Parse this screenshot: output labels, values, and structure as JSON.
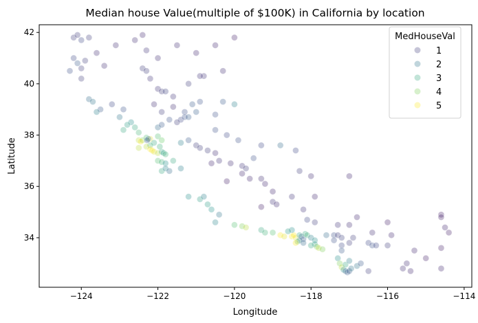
{
  "chart_data": {
    "type": "scatter",
    "title": "Median house Value(multiple of $100K) in California by location",
    "xlabel": "Longitude",
    "ylabel": "Latitude",
    "xlim": [
      -125.1,
      -113.8
    ],
    "ylim": [
      32.07,
      42.3
    ],
    "xticks": [
      -124,
      -122,
      -120,
      -118,
      -116,
      -114
    ],
    "xtick_labels": [
      "−124",
      "−122",
      "−120",
      "−118",
      "−116",
      "−114"
    ],
    "yticks": [
      34,
      36,
      38,
      40,
      42
    ],
    "ytick_labels": [
      "34",
      "36",
      "38",
      "40",
      "42"
    ],
    "grid": false,
    "colormap": "viridis",
    "hue_range": [
      0.15,
      5.0
    ],
    "alpha": 0.3,
    "legend": {
      "title": "MedHouseVal",
      "placement": "top-right",
      "entries": [
        {
          "label": "1",
          "value": 1
        },
        {
          "label": "2",
          "value": 2
        },
        {
          "label": "3",
          "value": 3
        },
        {
          "label": "4",
          "value": 4
        },
        {
          "label": "5",
          "value": 5
        }
      ]
    },
    "points": [
      [
        -124.2,
        41.8,
        1
      ],
      [
        -124.1,
        41.9,
        1
      ],
      [
        -124.0,
        41.7,
        1.2
      ],
      [
        -123.8,
        41.8,
        1
      ],
      [
        -124.2,
        41.0,
        1.2
      ],
      [
        -124.1,
        40.8,
        1.5
      ],
      [
        -124.0,
        40.6,
        1
      ],
      [
        -124.3,
        40.5,
        1.3
      ],
      [
        -123.9,
        40.9,
        1
      ],
      [
        -124.0,
        40.2,
        1
      ],
      [
        -123.6,
        41.2,
        0.8
      ],
      [
        -123.4,
        40.7,
        0.8
      ],
      [
        -123.1,
        41.5,
        0.8
      ],
      [
        -122.6,
        41.7,
        0.8
      ],
      [
        -122.4,
        41.9,
        0.7
      ],
      [
        -122.3,
        41.3,
        0.9
      ],
      [
        -122.0,
        41.0,
        0.8
      ],
      [
        -121.5,
        41.5,
        0.8
      ],
      [
        -121.0,
        41.2,
        0.7
      ],
      [
        -120.5,
        41.5,
        0.7
      ],
      [
        -120.3,
        40.5,
        0.8
      ],
      [
        -120.8,
        40.3,
        0.9
      ],
      [
        -120.0,
        41.8,
        0.6
      ],
      [
        -123.8,
        39.4,
        1.8
      ],
      [
        -123.7,
        39.3,
        2
      ],
      [
        -123.5,
        39.0,
        1.5
      ],
      [
        -123.2,
        39.2,
        1.2
      ],
      [
        -123.6,
        38.9,
        2.2
      ],
      [
        -122.9,
        39.0,
        1.4
      ],
      [
        -122.7,
        38.5,
        2.5
      ],
      [
        -122.8,
        38.4,
        2.8
      ],
      [
        -122.6,
        38.3,
        3
      ],
      [
        -122.5,
        38.1,
        3.3
      ],
      [
        -122.9,
        38.2,
        3
      ],
      [
        -123.0,
        38.7,
        2
      ],
      [
        -122.4,
        40.6,
        1
      ],
      [
        -122.3,
        40.5,
        1
      ],
      [
        -122.2,
        40.2,
        0.9
      ],
      [
        -122.0,
        39.8,
        0.9
      ],
      [
        -121.9,
        39.7,
        1
      ],
      [
        -121.8,
        39.7,
        1.1
      ],
      [
        -121.6,
        39.5,
        0.9
      ],
      [
        -121.6,
        39.1,
        0.8
      ],
      [
        -121.3,
        38.9,
        1.3
      ],
      [
        -121.4,
        38.6,
        1.2
      ],
      [
        -121.5,
        38.5,
        1
      ],
      [
        -121.3,
        38.7,
        1.4
      ],
      [
        -121.2,
        38.7,
        1.6
      ],
      [
        -121.0,
        38.9,
        1.6
      ],
      [
        -121.1,
        39.2,
        1.5
      ],
      [
        -120.9,
        39.3,
        1.4
      ],
      [
        -120.5,
        38.8,
        1.3
      ],
      [
        -120.3,
        39.3,
        1.5
      ],
      [
        -120.0,
        39.2,
        2.2
      ],
      [
        -121.7,
        38.6,
        1.4
      ],
      [
        -122.0,
        38.3,
        1.8
      ],
      [
        -121.9,
        38.4,
        1.5
      ],
      [
        -121.2,
        40.0,
        1
      ],
      [
        -120.9,
        40.3,
        0.9
      ],
      [
        -122.1,
        39.2,
        0.8
      ],
      [
        -121.9,
        38.9,
        1
      ],
      [
        -122.5,
        37.8,
        4.5
      ],
      [
        -122.4,
        37.8,
        4
      ],
      [
        -122.45,
        37.75,
        5
      ],
      [
        -122.3,
        37.9,
        3.5
      ],
      [
        -122.2,
        37.85,
        4.8
      ],
      [
        -122.1,
        37.7,
        3
      ],
      [
        -122.2,
        37.6,
        3.2
      ],
      [
        -122.3,
        37.55,
        4.5
      ],
      [
        -122.2,
        37.45,
        5
      ],
      [
        -122.15,
        37.4,
        5
      ],
      [
        -122.1,
        37.35,
        4.8
      ],
      [
        -122.0,
        37.3,
        4.5
      ],
      [
        -121.9,
        37.35,
        3
      ],
      [
        -121.85,
        37.3,
        2.8
      ],
      [
        -121.8,
        37.25,
        3.2
      ],
      [
        -121.95,
        37.55,
        3.2
      ],
      [
        -122.0,
        37.95,
        3.5
      ],
      [
        -121.9,
        37.8,
        3.8
      ],
      [
        -122.5,
        37.5,
        4.5
      ],
      [
        -122.0,
        37.0,
        3.5
      ],
      [
        -121.9,
        36.95,
        3.2
      ],
      [
        -121.8,
        36.9,
        2.5
      ],
      [
        -121.6,
        37.0,
        3
      ],
      [
        -121.4,
        37.7,
        2.2
      ],
      [
        -121.2,
        37.8,
        1.5
      ],
      [
        -122.25,
        37.85,
        2
      ],
      [
        -122.28,
        37.8,
        1.5
      ],
      [
        -121.9,
        36.6,
        3
      ],
      [
        -121.8,
        36.7,
        2.3
      ],
      [
        -121.7,
        36.6,
        1.8
      ],
      [
        -121.4,
        36.7,
        2.2
      ],
      [
        -121.0,
        37.6,
        1
      ],
      [
        -120.9,
        37.5,
        1
      ],
      [
        -120.5,
        37.3,
        0.8
      ],
      [
        -120.4,
        37.0,
        0.9
      ],
      [
        -120.1,
        36.9,
        0.8
      ],
      [
        -119.8,
        36.8,
        0.9
      ],
      [
        -119.7,
        36.7,
        1
      ],
      [
        -119.8,
        36.5,
        0.7
      ],
      [
        -119.6,
        36.3,
        0.7
      ],
      [
        -119.3,
        36.3,
        0.8
      ],
      [
        -119.2,
        36.1,
        0.7
      ],
      [
        -119.0,
        35.8,
        0.7
      ],
      [
        -119.0,
        35.4,
        0.9
      ],
      [
        -118.9,
        35.3,
        0.8
      ],
      [
        -119.3,
        35.2,
        0.6
      ],
      [
        -120.7,
        37.4,
        1
      ],
      [
        -120.6,
        36.9,
        0.7
      ],
      [
        -120.2,
        36.2,
        0.6
      ],
      [
        -119.5,
        37.1,
        1.3
      ],
      [
        -119.3,
        37.6,
        1.2
      ],
      [
        -119.9,
        37.8,
        1.3
      ],
      [
        -120.2,
        38.0,
        1.2
      ],
      [
        -120.5,
        38.2,
        1.3
      ],
      [
        -118.4,
        37.4,
        1.2
      ],
      [
        -118.8,
        37.6,
        1.8
      ],
      [
        -118.3,
        36.6,
        1
      ],
      [
        -118.0,
        36.4,
        0.8
      ],
      [
        -117.9,
        35.6,
        0.7
      ],
      [
        -118.2,
        35.1,
        0.9
      ],
      [
        -118.5,
        35.6,
        0.9
      ],
      [
        -117.0,
        36.4,
        0.7
      ],
      [
        -121.2,
        35.6,
        2.5
      ],
      [
        -120.7,
        35.3,
        2.8
      ],
      [
        -120.6,
        35.1,
        2.6
      ],
      [
        -120.4,
        34.9,
        2
      ],
      [
        -120.5,
        34.6,
        2.3
      ],
      [
        -120.0,
        34.5,
        3.5
      ],
      [
        -119.8,
        34.45,
        4
      ],
      [
        -119.7,
        34.4,
        4.5
      ],
      [
        -119.3,
        34.3,
        3
      ],
      [
        -119.2,
        34.2,
        3.2
      ],
      [
        -119.0,
        34.2,
        3.5
      ],
      [
        -118.8,
        34.1,
        5
      ],
      [
        -118.7,
        34.05,
        4.8
      ],
      [
        -120.9,
        35.5,
        2.8
      ],
      [
        -120.8,
        35.6,
        2.2
      ],
      [
        -118.5,
        34.05,
        5
      ],
      [
        -118.4,
        34.0,
        4.8
      ],
      [
        -118.45,
        34.1,
        5
      ],
      [
        -118.3,
        34.1,
        3
      ],
      [
        -118.25,
        34.05,
        1.8
      ],
      [
        -118.2,
        33.95,
        1.5
      ],
      [
        -118.3,
        33.9,
        2
      ],
      [
        -118.35,
        33.85,
        3.5
      ],
      [
        -118.4,
        33.8,
        5
      ],
      [
        -118.15,
        34.15,
        3
      ],
      [
        -118.1,
        34.1,
        3.2
      ],
      [
        -118.0,
        34.0,
        2.2
      ],
      [
        -117.9,
        33.9,
        2.5
      ],
      [
        -117.9,
        33.75,
        2.8
      ],
      [
        -117.85,
        33.65,
        4
      ],
      [
        -117.8,
        33.6,
        4.5
      ],
      [
        -117.7,
        33.55,
        4
      ],
      [
        -118.0,
        33.7,
        3
      ],
      [
        -118.5,
        34.3,
        2.5
      ],
      [
        -118.6,
        34.25,
        2.8
      ],
      [
        -118.1,
        34.7,
        1.2
      ],
      [
        -117.9,
        34.6,
        1
      ],
      [
        -118.2,
        33.8,
        1.8
      ],
      [
        -117.6,
        34.1,
        1.8
      ],
      [
        -117.4,
        34.1,
        1.3
      ],
      [
        -117.3,
        34.1,
        1
      ],
      [
        -117.2,
        34.0,
        1.1
      ],
      [
        -117.4,
        33.9,
        1.3
      ],
      [
        -117.2,
        33.7,
        1.2
      ],
      [
        -117.0,
        33.8,
        1
      ],
      [
        -116.9,
        34.0,
        1
      ],
      [
        -116.5,
        33.8,
        1.2
      ],
      [
        -116.4,
        33.7,
        1.4
      ],
      [
        -116.3,
        33.7,
        1.2
      ],
      [
        -117.3,
        34.5,
        0.9
      ],
      [
        -117.0,
        34.5,
        0.8
      ],
      [
        -116.8,
        34.8,
        0.7
      ],
      [
        -116.4,
        34.2,
        0.8
      ],
      [
        -117.2,
        33.5,
        1.5
      ],
      [
        -117.3,
        33.2,
        2.5
      ],
      [
        -117.25,
        33.0,
        4
      ],
      [
        -117.2,
        32.85,
        4.5
      ],
      [
        -117.15,
        32.75,
        2.5
      ],
      [
        -117.1,
        32.7,
        1.8
      ],
      [
        -117.05,
        32.65,
        1.5
      ],
      [
        -117.0,
        32.7,
        1.6
      ],
      [
        -116.95,
        32.8,
        2
      ],
      [
        -117.1,
        32.95,
        3
      ],
      [
        -117.0,
        33.1,
        2.2
      ],
      [
        -116.8,
        32.9,
        2
      ],
      [
        -116.7,
        33.0,
        1.5
      ],
      [
        -116.5,
        32.7,
        1
      ],
      [
        -116.0,
        33.7,
        1
      ],
      [
        -115.6,
        32.8,
        0.8
      ],
      [
        -115.5,
        33.0,
        0.8
      ],
      [
        -115.4,
        32.7,
        0.7
      ],
      [
        -115.3,
        33.5,
        0.7
      ],
      [
        -114.6,
        34.9,
        0.6
      ],
      [
        -114.6,
        34.8,
        0.6
      ],
      [
        -114.5,
        34.4,
        0.7
      ],
      [
        -114.6,
        33.6,
        0.6
      ],
      [
        -114.6,
        32.8,
        0.7
      ],
      [
        -114.4,
        34.2,
        0.6
      ],
      [
        -115.9,
        34.1,
        0.7
      ],
      [
        -116.0,
        34.6,
        0.6
      ],
      [
        -115.0,
        33.2,
        0.6
      ]
    ]
  }
}
